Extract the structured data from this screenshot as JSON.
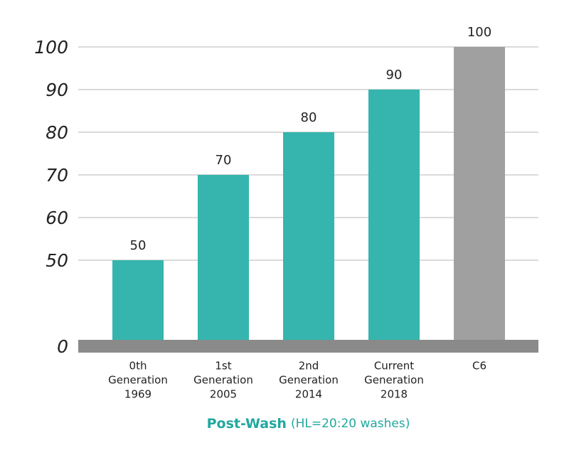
{
  "chart_data": {
    "type": "bar",
    "categories": [
      [
        "0th",
        "Generation",
        "1969"
      ],
      [
        "1st",
        "Generation",
        "2005"
      ],
      [
        "2nd",
        "Generation",
        "2014"
      ],
      [
        "Current",
        "Generation",
        "2018"
      ],
      [
        "C6"
      ]
    ],
    "values": [
      50,
      70,
      80,
      90,
      100
    ],
    "colors": [
      "#35b5ad",
      "#35b5ad",
      "#35b5ad",
      "#35b5ad",
      "#a0a0a0"
    ],
    "ylim": [
      0,
      100
    ],
    "ybreak": [
      0,
      50
    ],
    "yticks": [
      0,
      50,
      60,
      70,
      80,
      90,
      100
    ],
    "grid": true,
    "x_label": "Post-Wash",
    "x_label_note": "(HL=20:20 washes)"
  }
}
